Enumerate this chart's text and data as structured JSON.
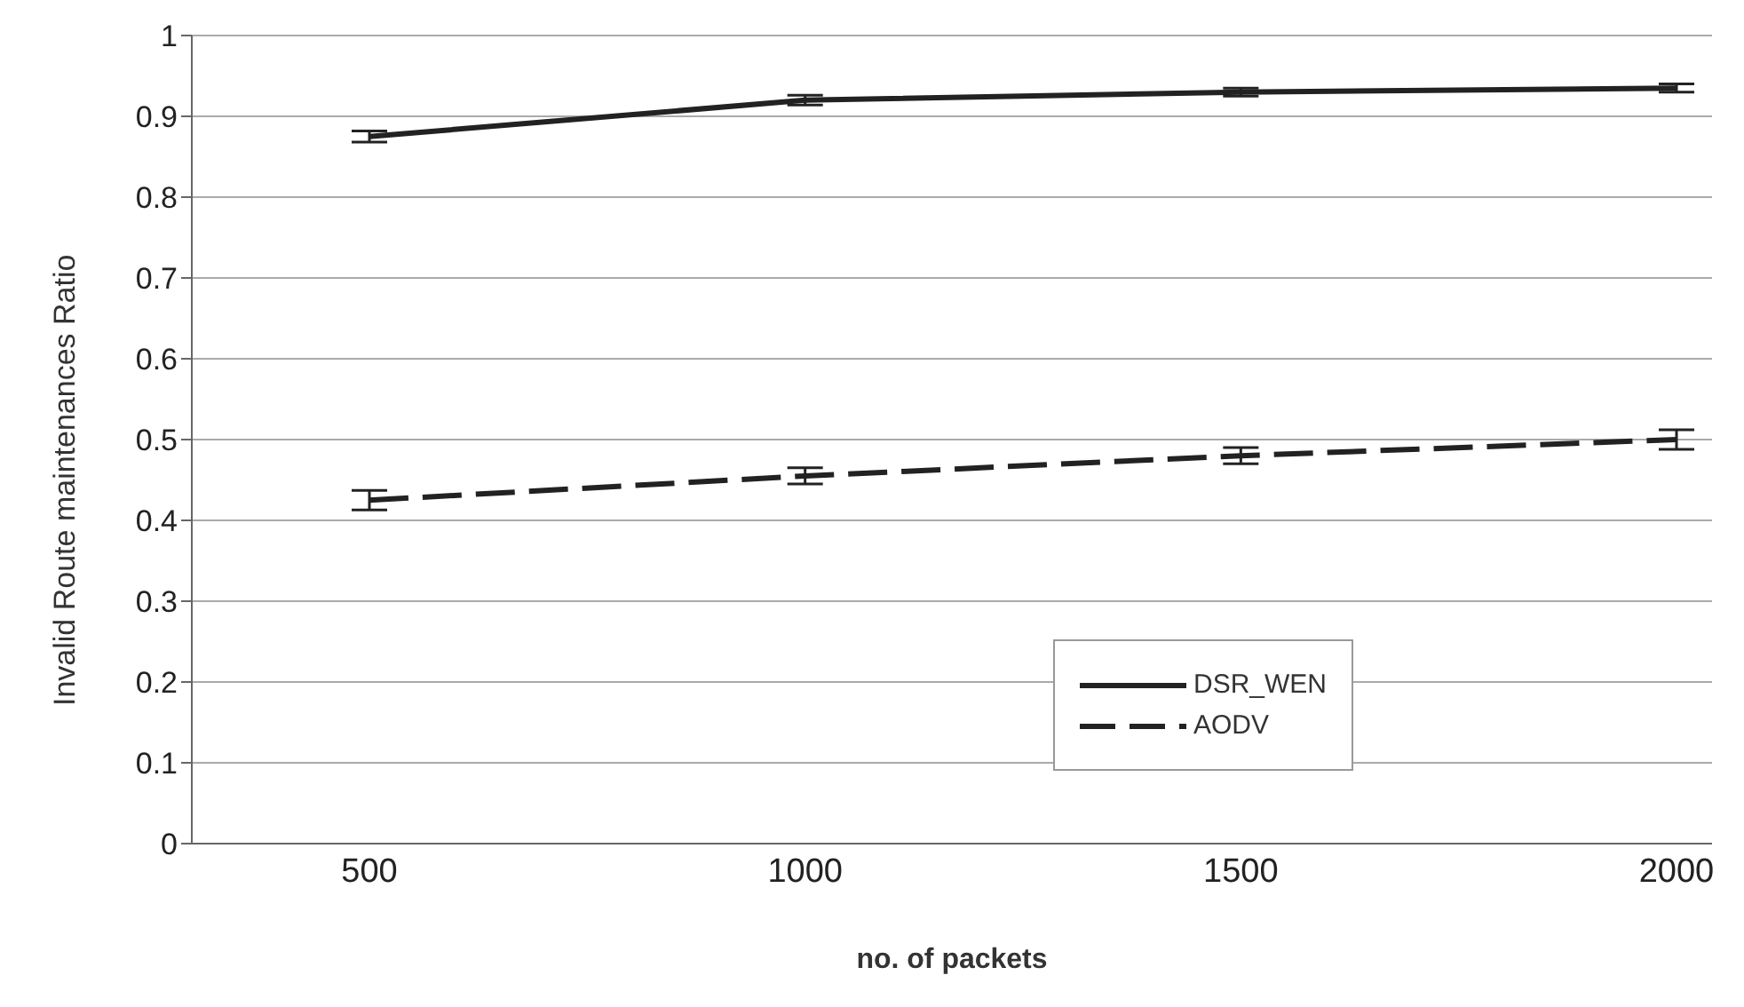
{
  "chart_data": {
    "type": "line",
    "xlabel": "no. of packets",
    "ylabel": "Invalid Route maintenances Ratio",
    "categories": [
      "500",
      "1000",
      "1500",
      "2000"
    ],
    "series": [
      {
        "name": "DSR_WEN",
        "color": "#222222",
        "line_style": "solid",
        "values": [
          0.875,
          0.92,
          0.93,
          0.935
        ],
        "errors": [
          0.007,
          0.006,
          0.005,
          0.005
        ]
      },
      {
        "name": "AODV",
        "color": "#222222",
        "line_style": "dashed",
        "values": [
          0.425,
          0.455,
          0.48,
          0.5
        ],
        "errors": [
          0.012,
          0.01,
          0.01,
          0.012
        ]
      }
    ],
    "ylim": [
      0,
      1
    ],
    "yticks": [
      0,
      0.1,
      0.2,
      0.3,
      0.4,
      0.5,
      0.6,
      0.7,
      0.8,
      0.9,
      1
    ],
    "grid": "y",
    "legend": "bottom right",
    "marker": "none"
  }
}
